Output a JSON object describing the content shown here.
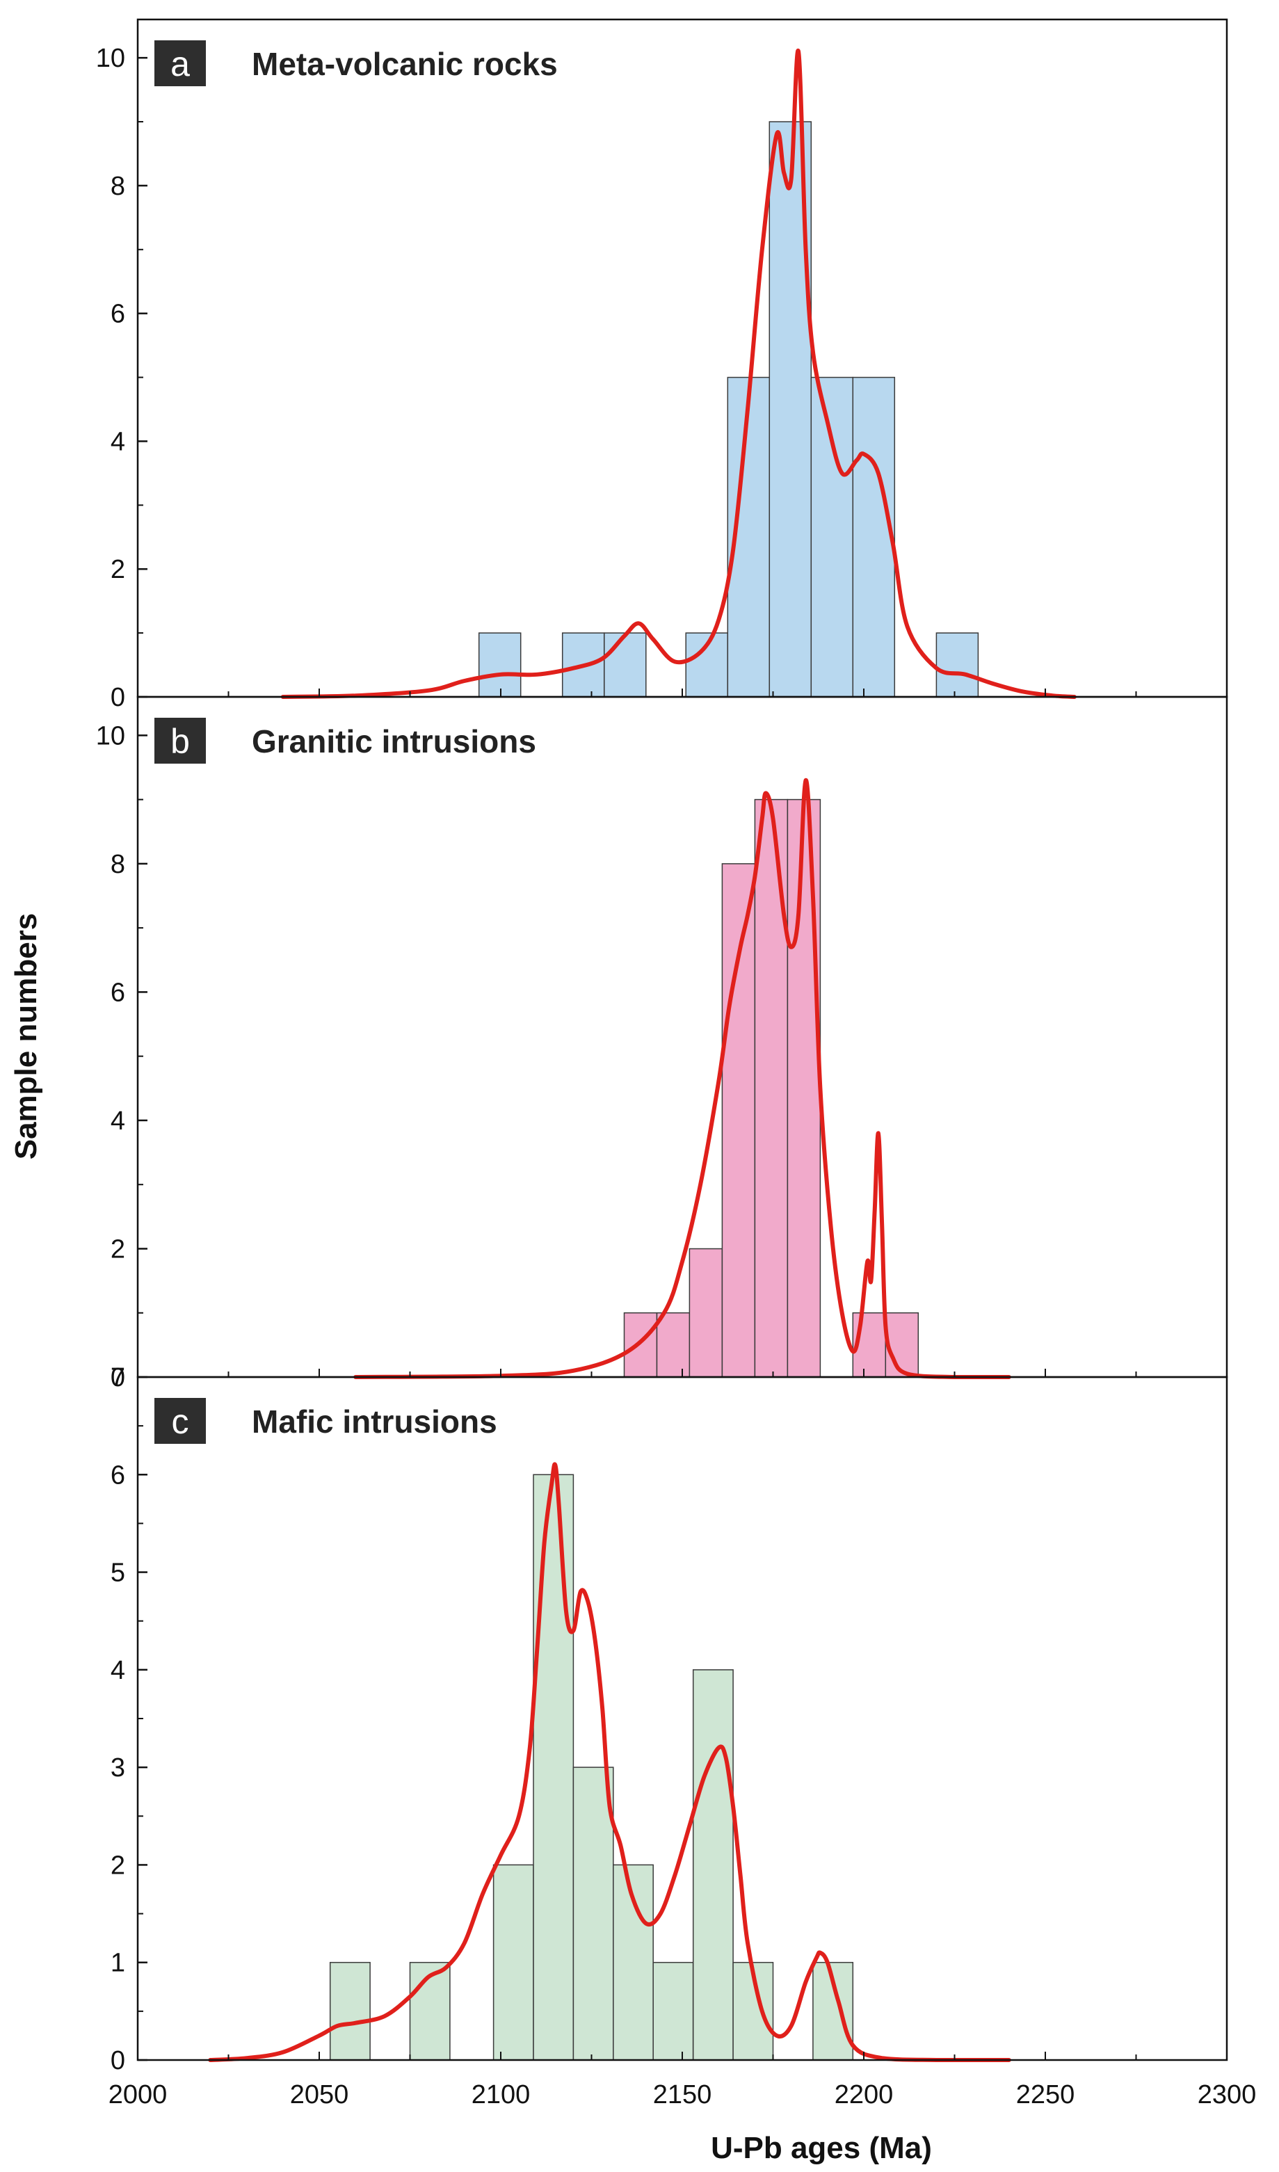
{
  "chart_data": [
    {
      "type": "bar",
      "panel": "a",
      "title": "Meta-volcanic rocks",
      "bar_color": "#b8d8ef",
      "bins": [
        {
          "start": 2094,
          "end": 2105.5,
          "count": 1
        },
        {
          "start": 2117,
          "end": 2128.5,
          "count": 1
        },
        {
          "start": 2128.5,
          "end": 2140,
          "count": 1
        },
        {
          "start": 2151,
          "end": 2162.5,
          "count": 1
        },
        {
          "start": 2162.5,
          "end": 2174,
          "count": 5
        },
        {
          "start": 2174,
          "end": 2185.5,
          "count": 9
        },
        {
          "start": 2185.5,
          "end": 2197,
          "count": 5
        },
        {
          "start": 2197,
          "end": 2208.5,
          "count": 5
        },
        {
          "start": 2220,
          "end": 2231.5,
          "count": 1
        }
      ],
      "ylim": [
        0,
        10.6
      ],
      "yticks": [
        0,
        2,
        4,
        6,
        8,
        10
      ],
      "curve": {
        "color": "#e0201b",
        "x": [
          2040,
          2060,
          2080,
          2090,
          2100,
          2110,
          2120,
          2128,
          2134,
          2138,
          2142,
          2148,
          2155,
          2160,
          2164,
          2168,
          2172,
          2176,
          2178,
          2180,
          2182,
          2184,
          2186,
          2190,
          2194,
          2198,
          2200,
          2204,
          2208,
          2212,
          2220,
          2228,
          2236,
          2244,
          2252,
          2258
        ],
        "y": [
          0.0,
          0.02,
          0.1,
          0.25,
          0.35,
          0.35,
          0.45,
          0.6,
          0.95,
          1.15,
          0.9,
          0.55,
          0.7,
          1.2,
          2.3,
          4.5,
          7.0,
          8.8,
          8.2,
          8.1,
          10.1,
          7.0,
          5.4,
          4.3,
          3.5,
          3.7,
          3.8,
          3.5,
          2.4,
          1.1,
          0.45,
          0.35,
          0.2,
          0.08,
          0.02,
          0.0
        ]
      }
    },
    {
      "type": "bar",
      "panel": "b",
      "title": "Granitic intrusions",
      "bar_color": "#f1aacb",
      "bins": [
        {
          "start": 2134,
          "end": 2143,
          "count": 1
        },
        {
          "start": 2143,
          "end": 2152,
          "count": 1
        },
        {
          "start": 2152,
          "end": 2161,
          "count": 2
        },
        {
          "start": 2161,
          "end": 2170,
          "count": 8
        },
        {
          "start": 2170,
          "end": 2179,
          "count": 9
        },
        {
          "start": 2179,
          "end": 2188,
          "count": 9
        },
        {
          "start": 2197,
          "end": 2206,
          "count": 1
        },
        {
          "start": 2206,
          "end": 2215,
          "count": 1
        }
      ],
      "ylim": [
        0,
        10.6
      ],
      "yticks": [
        0,
        2,
        4,
        6,
        8,
        10
      ],
      "curve": {
        "color": "#e0201b",
        "x": [
          2060,
          2100,
          2120,
          2135,
          2145,
          2150,
          2155,
          2160,
          2163,
          2166,
          2168,
          2170,
          2172,
          2173,
          2175,
          2178,
          2180,
          2182,
          2184,
          2186,
          2188,
          2191,
          2194,
          2197,
          2199,
          2201,
          2202,
          2203,
          2204,
          2205,
          2206,
          2208,
          2212,
          2225,
          2240
        ],
        "y": [
          0.0,
          0.02,
          0.1,
          0.4,
          1.0,
          1.8,
          3.0,
          4.6,
          5.8,
          6.7,
          7.2,
          7.8,
          8.7,
          9.1,
          8.7,
          7.2,
          6.7,
          7.2,
          9.3,
          7.5,
          4.5,
          2.3,
          1.0,
          0.4,
          0.8,
          1.8,
          1.5,
          2.6,
          3.8,
          2.4,
          0.8,
          0.3,
          0.05,
          0.0,
          0.0
        ]
      }
    },
    {
      "type": "bar",
      "panel": "c",
      "title": "Mafic intrusions",
      "bar_color": "#cfe6d4",
      "bins": [
        {
          "start": 2053,
          "end": 2064,
          "count": 1
        },
        {
          "start": 2075,
          "end": 2086,
          "count": 1
        },
        {
          "start": 2098,
          "end": 2109,
          "count": 2
        },
        {
          "start": 2109,
          "end": 2120,
          "count": 6
        },
        {
          "start": 2120,
          "end": 2131,
          "count": 3
        },
        {
          "start": 2131,
          "end": 2142,
          "count": 2
        },
        {
          "start": 2142,
          "end": 2153,
          "count": 1
        },
        {
          "start": 2153,
          "end": 2164,
          "count": 4
        },
        {
          "start": 2164,
          "end": 2175,
          "count": 1
        },
        {
          "start": 2186,
          "end": 2197,
          "count": 1
        }
      ],
      "ylim": [
        0,
        7
      ],
      "yticks": [
        0,
        1,
        2,
        3,
        4,
        5,
        6,
        7
      ],
      "curve": {
        "color": "#e0201b",
        "x": [
          2020,
          2030,
          2040,
          2050,
          2055,
          2060,
          2068,
          2075,
          2080,
          2085,
          2090,
          2095,
          2100,
          2105,
          2108,
          2110,
          2112,
          2114,
          2115,
          2116,
          2118,
          2120,
          2122,
          2124,
          2126,
          2128,
          2130,
          2133,
          2136,
          2140,
          2144,
          2148,
          2152,
          2156,
          2160,
          2162,
          2164,
          2166,
          2168,
          2172,
          2176,
          2180,
          2184,
          2187,
          2188,
          2190,
          2193,
          2197,
          2205,
          2220,
          2240
        ],
        "y": [
          0.0,
          0.02,
          0.08,
          0.25,
          0.35,
          0.38,
          0.45,
          0.65,
          0.85,
          0.95,
          1.2,
          1.7,
          2.1,
          2.5,
          3.2,
          4.2,
          5.3,
          5.9,
          6.1,
          5.7,
          4.6,
          4.4,
          4.8,
          4.7,
          4.3,
          3.6,
          2.6,
          2.2,
          1.7,
          1.4,
          1.5,
          1.9,
          2.4,
          2.9,
          3.2,
          3.1,
          2.6,
          1.9,
          1.2,
          0.5,
          0.25,
          0.35,
          0.8,
          1.05,
          1.1,
          1.0,
          0.6,
          0.15,
          0.02,
          0.0,
          0.0
        ]
      }
    }
  ],
  "xaxis": {
    "range": [
      2000,
      2300
    ],
    "ticks": [
      2000,
      2050,
      2100,
      2150,
      2200,
      2250,
      2300
    ],
    "label": "U-Pb ages (Ma)"
  },
  "yaxis": {
    "label": "Sample numbers"
  }
}
